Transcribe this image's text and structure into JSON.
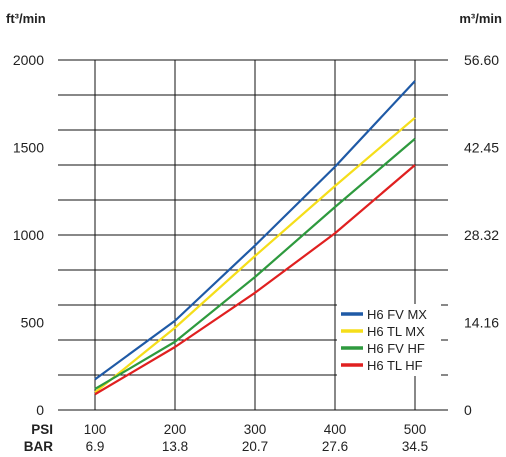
{
  "chart_data": {
    "type": "line",
    "left_unit": "ft³/min",
    "right_unit": "m³/min",
    "ylim": [
      0,
      2000
    ],
    "y_ticks_left": [
      "2000",
      "1500",
      "1000",
      "500",
      "0"
    ],
    "y_ticks_right": [
      "56.60",
      "42.45",
      "28.32",
      "14.16",
      "0"
    ],
    "x_row_labels": [
      "PSI",
      "BAR"
    ],
    "x_psi": [
      "100",
      "200",
      "300",
      "400",
      "500"
    ],
    "x_bar": [
      "6.9",
      "13.8",
      "20.7",
      "27.6",
      "34.5"
    ],
    "x": [
      100,
      200,
      300,
      400,
      500
    ],
    "xlim": [
      100,
      500
    ],
    "grid": true,
    "legend_position": "bottom-right",
    "series": [
      {
        "name": "H6 FV MX",
        "color": "#1f5aa6",
        "values": [
          175,
          510,
          940,
          1390,
          1880
        ]
      },
      {
        "name": "H6 TL MX",
        "color": "#f5de1a",
        "values": [
          100,
          470,
          880,
          1280,
          1670
        ]
      },
      {
        "name": "H6 FV HF",
        "color": "#2e9a3e",
        "values": [
          120,
          390,
          760,
          1160,
          1550
        ]
      },
      {
        "name": "H6 TL HF",
        "color": "#e02020",
        "values": [
          90,
          360,
          670,
          1010,
          1400
        ]
      }
    ]
  }
}
